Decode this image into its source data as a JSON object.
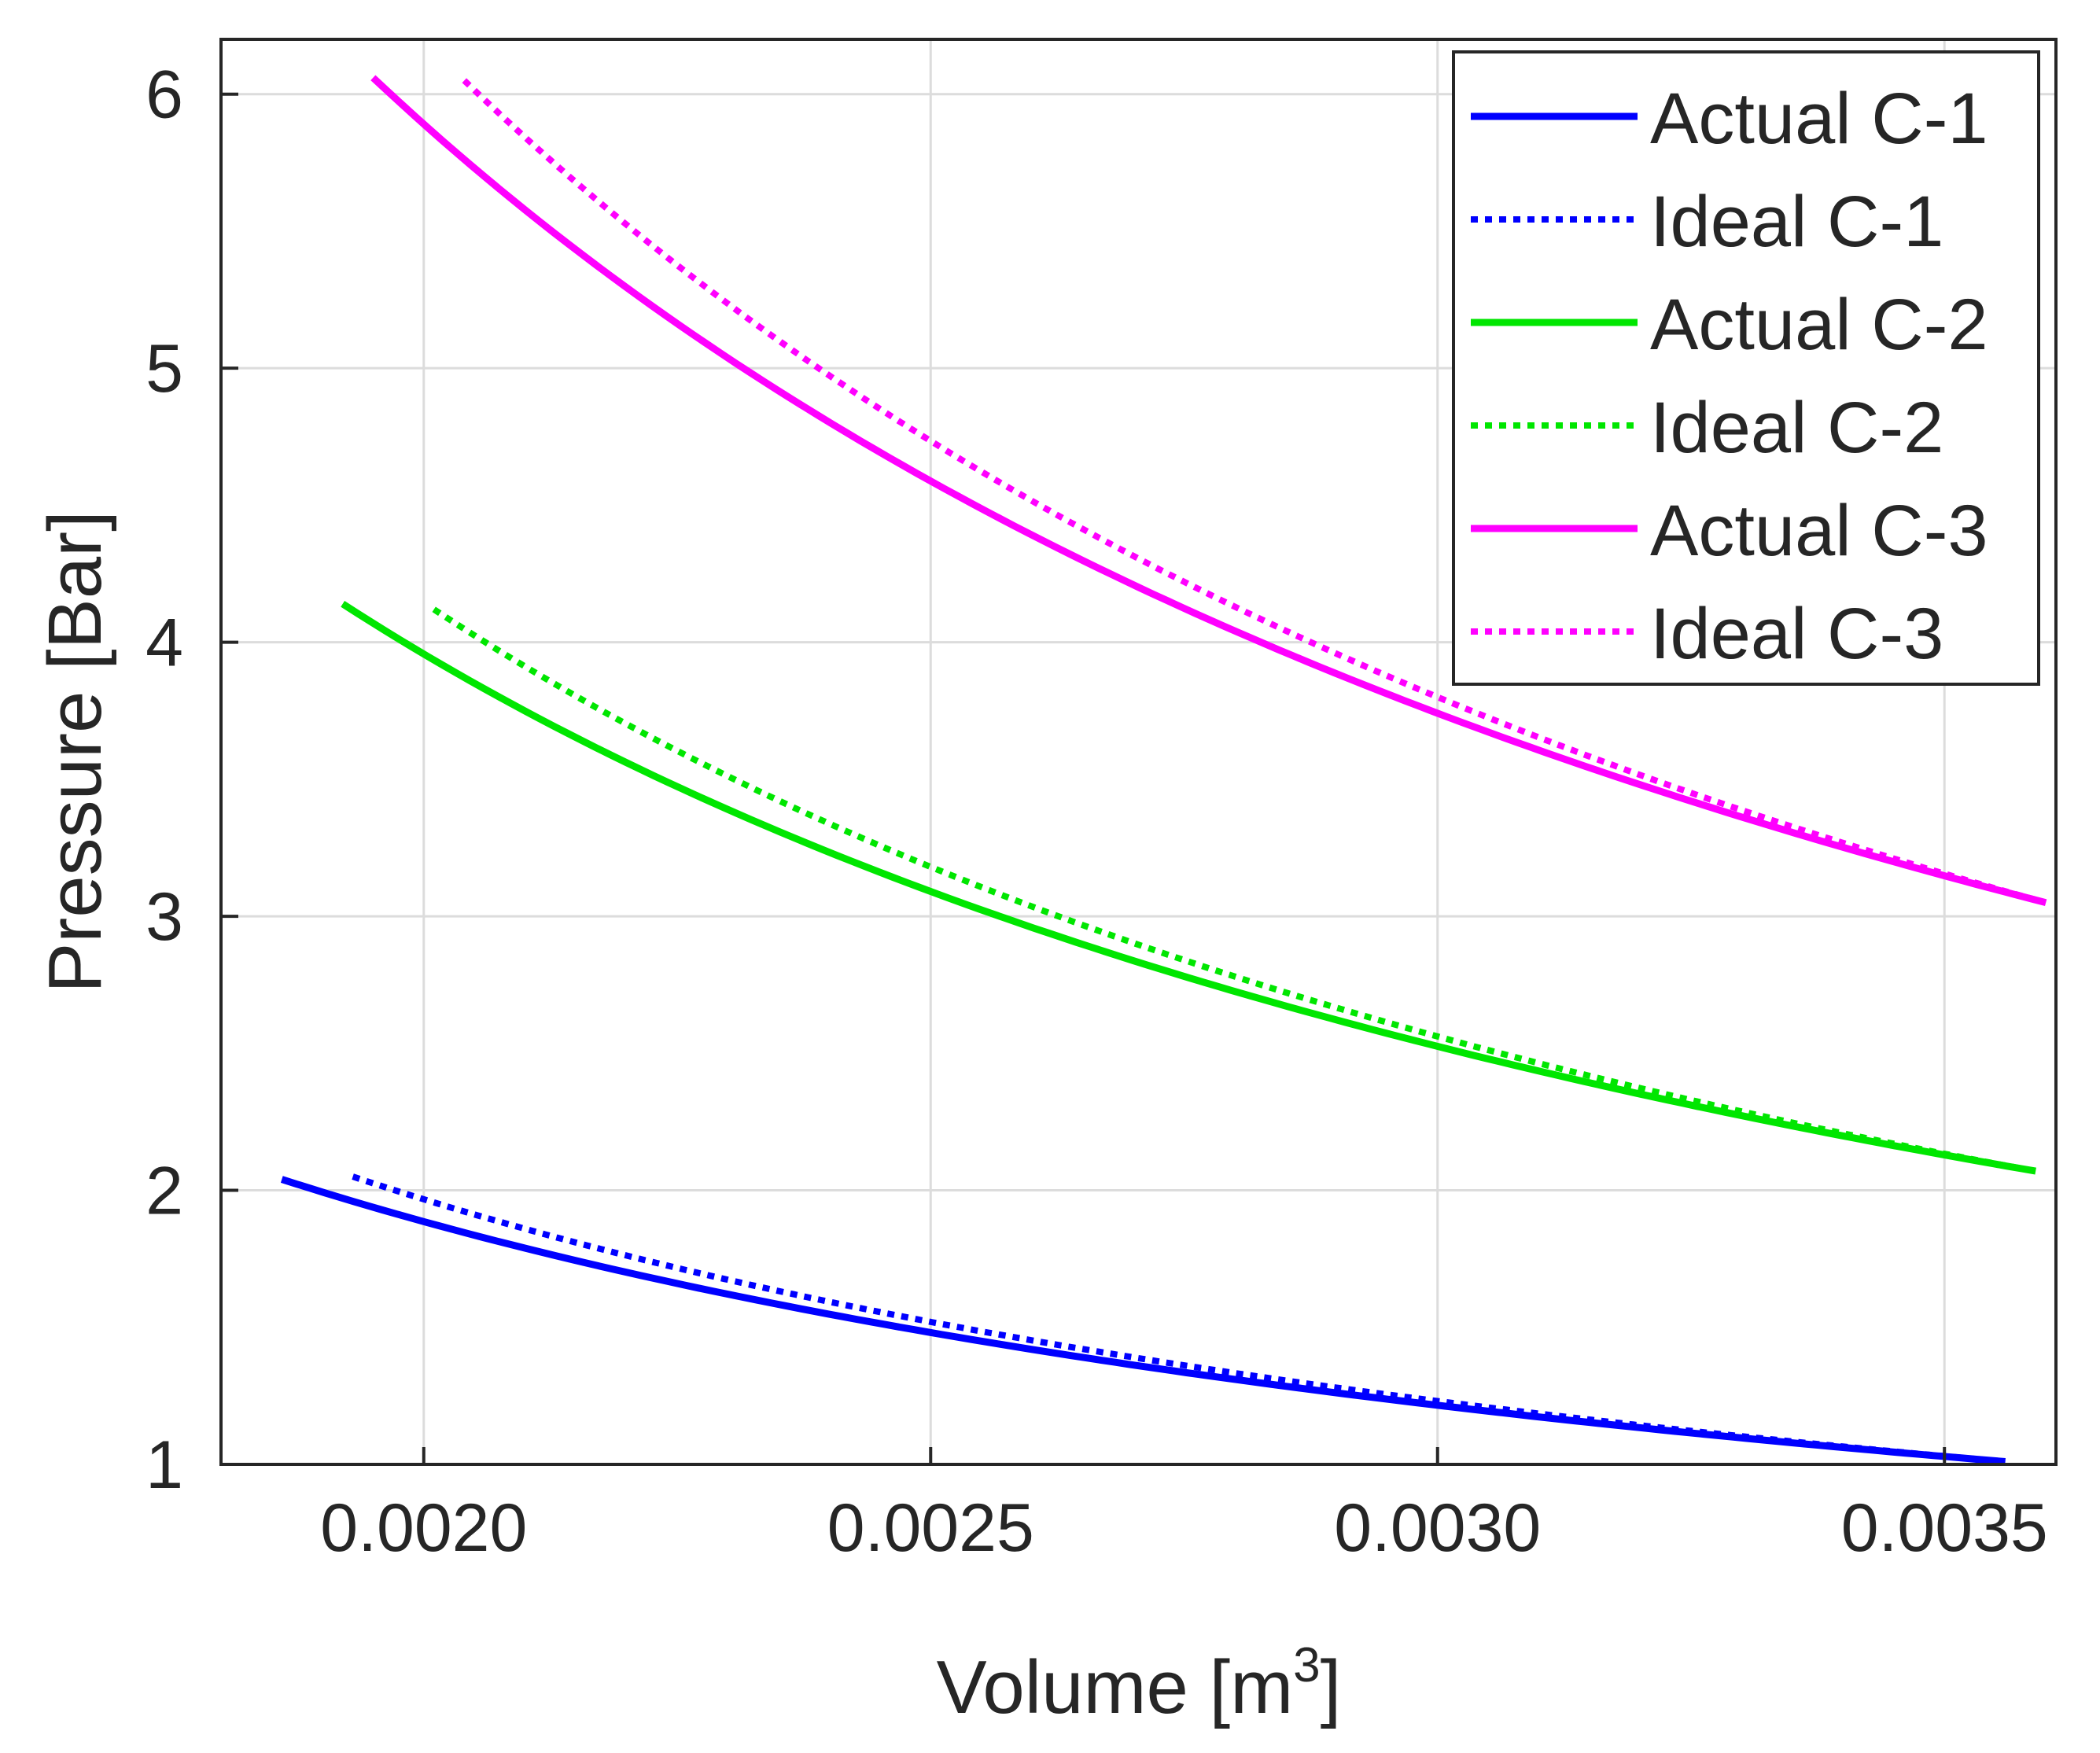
{
  "chart_data": {
    "type": "line",
    "title": "",
    "xlabel": "Volume [m",
    "xlabel_sup": "3",
    "xlabel_suffix": "]",
    "ylabel": "Pressure [Bar]",
    "xlim": [
      0.0018,
      0.00361
    ],
    "ylim": [
      1,
      6.2
    ],
    "x_ticks": [
      0.002,
      0.0025,
      0.003,
      0.0035
    ],
    "x_tick_labels": [
      "0.0020",
      "0.0025",
      "0.0030",
      "0.0035"
    ],
    "y_ticks": [
      1,
      2,
      3,
      4,
      5,
      6
    ],
    "y_tick_labels": [
      "1",
      "2",
      "3",
      "4",
      "5",
      "6"
    ],
    "grid": true,
    "legend_position": "top-right",
    "series": [
      {
        "name": "Actual C-1",
        "color": "#0000ff",
        "style": "solid",
        "v_start": 0.00186,
        "v_end": 0.00356,
        "p_start": 2.04,
        "p_end": 1.01
      },
      {
        "name": "Ideal C-1",
        "color": "#0000ff",
        "style": "dotted",
        "v_start": 0.00193,
        "v_end": 0.00356,
        "p_start": 2.05,
        "p_end": 1.01
      },
      {
        "name": "Actual C-2",
        "color": "#00e600",
        "style": "solid",
        "v_start": 0.00192,
        "v_end": 0.00359,
        "p_start": 4.14,
        "p_end": 2.07
      },
      {
        "name": "Ideal C-2",
        "color": "#00e600",
        "style": "dotted",
        "v_start": 0.00201,
        "v_end": 0.00359,
        "p_start": 4.12,
        "p_end": 2.07
      },
      {
        "name": "Actual C-3",
        "color": "#ff00ff",
        "style": "solid",
        "v_start": 0.00195,
        "v_end": 0.0036,
        "p_start": 6.06,
        "p_end": 3.05
      },
      {
        "name": "Ideal C-3",
        "color": "#ff00ff",
        "style": "dotted",
        "v_start": 0.00204,
        "v_end": 0.0036,
        "p_start": 6.05,
        "p_end": 3.05
      }
    ]
  }
}
